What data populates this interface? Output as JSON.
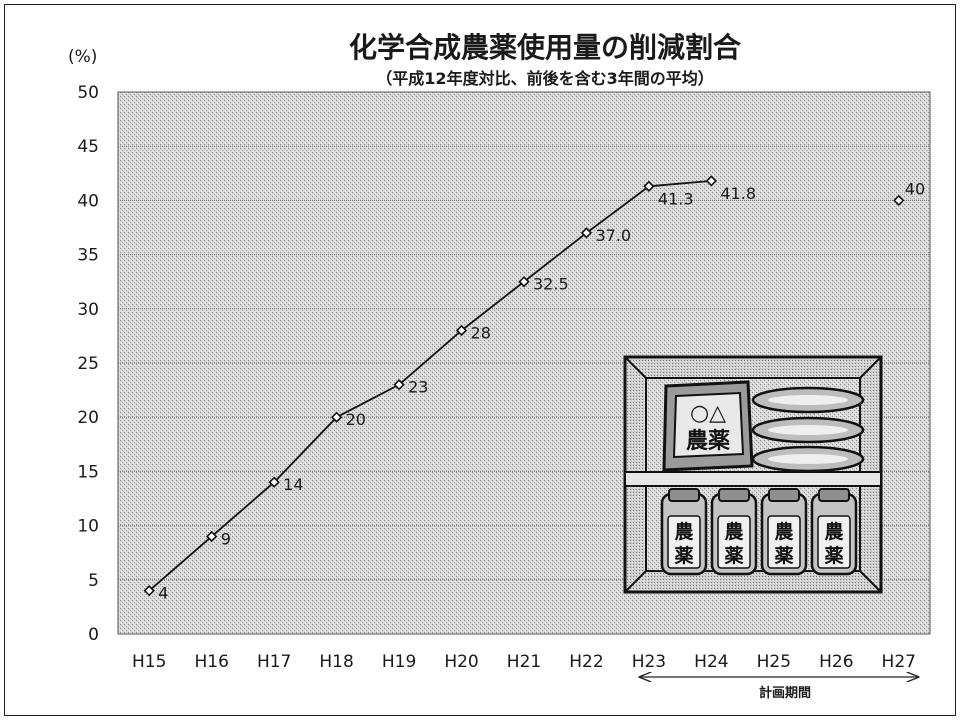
{
  "chart_data": {
    "type": "line",
    "title": "化学合成農薬使用量の削減割合",
    "subtitle": "（平成12年度対比、前後を含む3年間の平均）",
    "ylabel": "(%)",
    "xlabel": "",
    "ylim": [
      0,
      50
    ],
    "yticks": [
      "0",
      "5",
      "10",
      "15",
      "20",
      "25",
      "30",
      "35",
      "40",
      "45",
      "50"
    ],
    "categories": [
      "H15",
      "H16",
      "H17",
      "H18",
      "H19",
      "H20",
      "H21",
      "H22",
      "H23",
      "H24",
      "H25",
      "H26",
      "H27"
    ],
    "series": [
      {
        "values": [
          4,
          9,
          14,
          20,
          23,
          28,
          32.5,
          37.0,
          41.3,
          41.8,
          null,
          null,
          null
        ],
        "labels": [
          "4",
          "9",
          "14",
          "20",
          "23",
          "28",
          "32.5",
          "37.0",
          "41.3",
          "41.8",
          "",
          "",
          ""
        ]
      },
      {
        "values": [
          null,
          null,
          null,
          null,
          null,
          null,
          null,
          null,
          null,
          null,
          null,
          null,
          40
        ],
        "labels": [
          "",
          "",
          "",
          "",
          "",
          "",
          "",
          "",
          "",
          "",
          "",
          "",
          "40"
        ]
      }
    ],
    "grid": true,
    "legend": "none",
    "annotation": {
      "text": "計画期間",
      "from": "H23",
      "to": "H27"
    }
  },
  "illustration": {
    "bag_symbols": "○△",
    "bag_text": "農薬",
    "bottle_text": [
      "農",
      "薬"
    ]
  }
}
